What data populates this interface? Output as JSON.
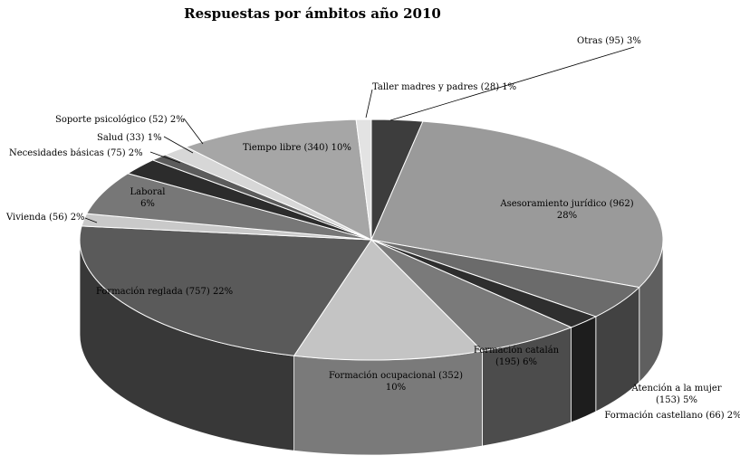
{
  "chart_data": {
    "type": "pie",
    "title": "Respuestas por ámbitos año 2010",
    "legend": "none",
    "slices": [
      {
        "lines": [
          "Otras (95) 3%"
        ],
        "value": 95,
        "percent": 3,
        "color": "#3d3d3d"
      },
      {
        "lines": [
          "Asesoramiento jurídico (962)",
          "28%"
        ],
        "value": 962,
        "percent": 28,
        "color": "#9a9a9a"
      },
      {
        "lines": [
          "Atención a la mujer",
          "(153) 5%"
        ],
        "value": 153,
        "percent": 5,
        "color": "#6b6b6b"
      },
      {
        "lines": [
          "Formación castellano (66) 2%"
        ],
        "value": 66,
        "percent": 2,
        "color": "#2e2e2e"
      },
      {
        "lines": [
          "Formación catalán",
          "(195) 6%"
        ],
        "value": 195,
        "percent": 6,
        "color": "#7a7a7a"
      },
      {
        "lines": [
          "Formación ocupacional (352)",
          "10%"
        ],
        "value": 352,
        "percent": 10,
        "color": "#c4c4c4"
      },
      {
        "lines": [
          "Formación reglada (757) 22%"
        ],
        "value": 757,
        "percent": 22,
        "color": "#5a5a5a"
      },
      {
        "lines": [
          "Vivienda (56) 2%"
        ],
        "value": 56,
        "percent": 2,
        "color": "#c9c9c9"
      },
      {
        "lines": [
          "Laboral",
          "6%"
        ],
        "value": 195,
        "percent": 6,
        "color": "#777777"
      },
      {
        "lines": [
          "Necesidades básicas (75) 2%"
        ],
        "value": 75,
        "percent": 2,
        "color": "#2c2c2c"
      },
      {
        "lines": [
          "Salud (33) 1%"
        ],
        "value": 33,
        "percent": 1,
        "color": "#5c5c5c"
      },
      {
        "lines": [
          "Soporte psicológico (52) 2%"
        ],
        "value": 52,
        "percent": 2,
        "color": "#d7d7d7"
      },
      {
        "lines": [
          "Tiempo libre (340) 10%"
        ],
        "value": 340,
        "percent": 10,
        "color": "#a6a6a6"
      },
      {
        "lines": [
          "Taller madres y padres (28) 1%"
        ],
        "value": 28,
        "percent": 1,
        "color": "#e3e3e3"
      }
    ]
  }
}
